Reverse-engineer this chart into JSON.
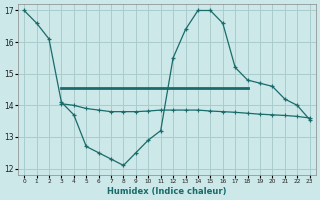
{
  "xlabel": "Humidex (Indice chaleur)",
  "bg_color": "#cce8e8",
  "grid_color": "#aacccc",
  "line_color": "#1a6b6b",
  "xlim": [
    -0.5,
    23.5
  ],
  "ylim": [
    11.8,
    17.2
  ],
  "yticks": [
    12,
    13,
    14,
    15,
    16,
    17
  ],
  "xticks": [
    0,
    1,
    2,
    3,
    4,
    5,
    6,
    7,
    8,
    9,
    10,
    11,
    12,
    13,
    14,
    15,
    16,
    17,
    18,
    19,
    20,
    21,
    22,
    23
  ],
  "series1_x": [
    0,
    1,
    2,
    3,
    4,
    5,
    6,
    7,
    8,
    9,
    10,
    11,
    12,
    13,
    14,
    15,
    16,
    17,
    18,
    19,
    20,
    21,
    22,
    23
  ],
  "series1_y": [
    17.0,
    16.6,
    16.1,
    14.1,
    13.7,
    12.7,
    12.5,
    12.3,
    12.1,
    12.5,
    12.9,
    13.2,
    15.5,
    16.4,
    17.0,
    17.0,
    16.6,
    15.2,
    14.8,
    14.7,
    14.6,
    14.2,
    14.0,
    13.55
  ],
  "series2_x": [
    3,
    18
  ],
  "series2_y": [
    14.55,
    14.55
  ],
  "series3_x": [
    3,
    4,
    5,
    6,
    7,
    8,
    9,
    10,
    11,
    12,
    13,
    14,
    15,
    16,
    17,
    18,
    19,
    20,
    21,
    22,
    23
  ],
  "series3_y": [
    14.05,
    14.0,
    13.9,
    13.85,
    13.8,
    13.8,
    13.8,
    13.82,
    13.85,
    13.85,
    13.85,
    13.85,
    13.82,
    13.8,
    13.78,
    13.75,
    13.72,
    13.7,
    13.68,
    13.65,
    13.6
  ]
}
